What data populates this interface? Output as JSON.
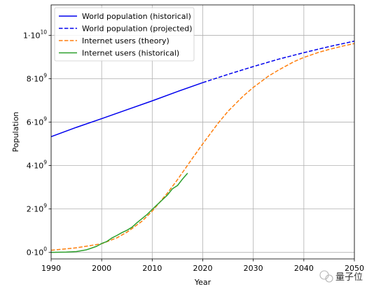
{
  "chart_data": {
    "type": "line",
    "title": "",
    "xlabel": "Year",
    "ylabel": "Population",
    "xlim": [
      1990,
      2050
    ],
    "ylim": [
      -300000000.0,
      11400000000.0
    ],
    "grid": true,
    "legend_position": "top-left",
    "x_ticks": [
      {
        "value": 1990,
        "label": "1990"
      },
      {
        "value": 2000,
        "label": "2000"
      },
      {
        "value": 2010,
        "label": "2010"
      },
      {
        "value": 2020,
        "label": "2020"
      },
      {
        "value": 2030,
        "label": "2030"
      },
      {
        "value": 2040,
        "label": "2040"
      },
      {
        "value": 2050,
        "label": "2050"
      }
    ],
    "y_ticks": [
      {
        "value": 0,
        "mantissa": "0·10",
        "exponent": "0"
      },
      {
        "value": 2000000000,
        "mantissa": "2·10",
        "exponent": "9"
      },
      {
        "value": 4000000000,
        "mantissa": "4·10",
        "exponent": "9"
      },
      {
        "value": 6000000000,
        "mantissa": "6·10",
        "exponent": "9"
      },
      {
        "value": 8000000000,
        "mantissa": "8·10",
        "exponent": "9"
      },
      {
        "value": 10000000000,
        "mantissa": "1·10",
        "exponent": "10"
      }
    ],
    "series": [
      {
        "name": "World population (historical)",
        "color": "#0000ee",
        "style": "solid",
        "x": [
          1990,
          1995,
          2000,
          2005,
          2010,
          2015,
          2020
        ],
        "y": [
          5330000000.0,
          5760000000.0,
          6160000000.0,
          6570000000.0,
          6980000000.0,
          7410000000.0,
          7820000000.0
        ]
      },
      {
        "name": "World population (projected)",
        "color": "#0000ee",
        "style": "dashed",
        "x": [
          2020,
          2025,
          2030,
          2035,
          2040,
          2045,
          2050
        ],
        "y": [
          7820000000.0,
          8200000000.0,
          8560000000.0,
          8900000000.0,
          9200000000.0,
          9480000000.0,
          9730000000.0
        ]
      },
      {
        "name": "Internet users (theory)",
        "color": "#ff7f0e",
        "style": "dashed",
        "x": [
          1990,
          1995,
          2000,
          2003,
          2005,
          2008,
          2010,
          2013,
          2015,
          2018,
          2020,
          2023,
          2025,
          2028,
          2030,
          2033,
          2035,
          2038,
          2040,
          2043,
          2045,
          2048,
          2050
        ],
        "y": [
          100000000.0,
          210000000.0,
          400000000.0,
          670000000.0,
          930000000.0,
          1440000000.0,
          1900000000.0,
          2730000000.0,
          3350000000.0,
          4350000000.0,
          5000000000.0,
          5940000000.0,
          6500000000.0,
          7200000000.0,
          7600000000.0,
          8120000000.0,
          8400000000.0,
          8780000000.0,
          8980000000.0,
          9220000000.0,
          9350000000.0,
          9520000000.0,
          9620000000.0
        ]
      },
      {
        "name": "Internet users (historical)",
        "color": "#2ca02c",
        "style": "solid",
        "x": [
          1990,
          1993,
          1995,
          1997,
          1999,
          2000,
          2001,
          2002,
          2003,
          2004,
          2005,
          2006,
          2007,
          2008,
          2009,
          2010,
          2011,
          2012,
          2013,
          2014,
          2015,
          2016,
          2017
        ],
        "y": [
          3000000.0,
          15000000.0,
          40000000.0,
          120000000.0,
          280000000.0,
          410000000.0,
          500000000.0,
          660000000.0,
          780000000.0,
          910000000.0,
          1020000000.0,
          1160000000.0,
          1370000000.0,
          1560000000.0,
          1750000000.0,
          1980000000.0,
          2200000000.0,
          2420000000.0,
          2640000000.0,
          2930000000.0,
          3080000000.0,
          3380000000.0,
          3650000000.0
        ]
      }
    ]
  },
  "watermark": {
    "text": "量子位"
  }
}
